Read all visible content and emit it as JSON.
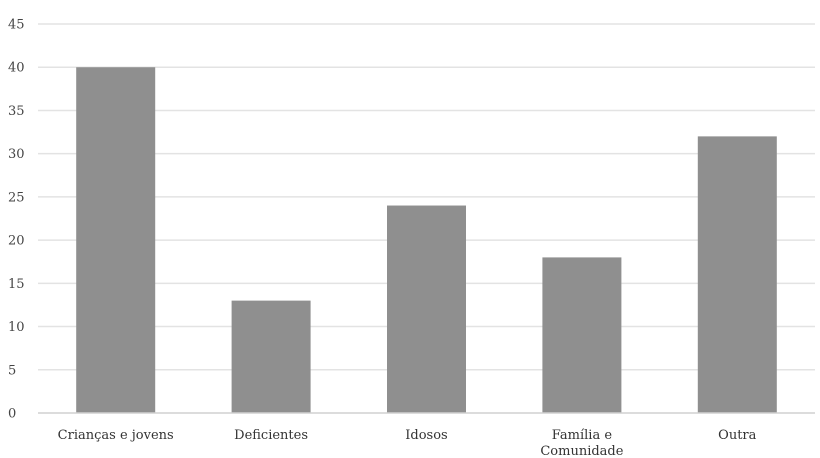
{
  "chart_data": {
    "type": "bar",
    "categories": [
      "Crianças e jovens",
      "Deficientes",
      "Idosos",
      "Família e Comunidade",
      "Outra"
    ],
    "category_label_lines": [
      [
        "Crianças e jovens"
      ],
      [
        "Deficientes"
      ],
      [
        "Idosos"
      ],
      [
        "Família e",
        "Comunidade"
      ],
      [
        "Outra"
      ]
    ],
    "values": [
      40,
      13,
      24,
      18,
      32
    ],
    "yticks": [
      0,
      5,
      10,
      15,
      20,
      25,
      30,
      35,
      40,
      45
    ],
    "ylim": [
      0,
      45
    ],
    "grid": true,
    "legend": "none",
    "bar_color": "#8f8f8f",
    "grid_color": "#e3e3e3",
    "axis_color": "#d0d0d0"
  }
}
